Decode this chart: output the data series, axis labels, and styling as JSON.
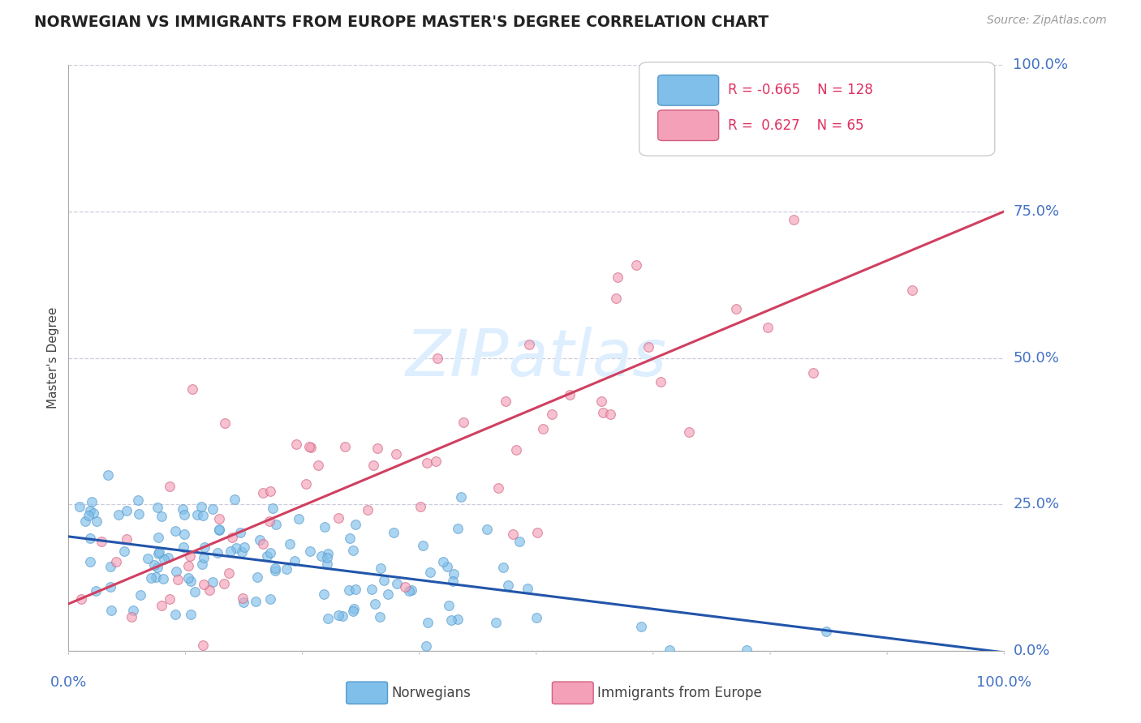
{
  "title": "NORWEGIAN VS IMMIGRANTS FROM EUROPE MASTER'S DEGREE CORRELATION CHART",
  "source": "Source: ZipAtlas.com",
  "ylabel": "Master's Degree",
  "blue_label": "Norwegians",
  "pink_label": "Immigrants from Europe",
  "blue_R": -0.665,
  "blue_N": 128,
  "pink_R": 0.627,
  "pink_N": 65,
  "blue_color": "#7fbfea",
  "pink_color": "#f4a0b8",
  "blue_edge_color": "#5599cc",
  "pink_edge_color": "#d06080",
  "blue_line_color": "#2255aa",
  "pink_line_color": "#d04060",
  "title_color": "#222222",
  "axis_label_color": "#4472c4",
  "watermark_color": "#ddeeff",
  "background_color": "#ffffff",
  "grid_color": "#ccccdd",
  "ylim": [
    0,
    1.0
  ],
  "xlim": [
    0,
    1.0
  ],
  "ytick_vals": [
    0.0,
    0.25,
    0.5,
    0.75,
    1.0
  ],
  "ytick_labels": [
    "0.0%",
    "25.0%",
    "50.0%",
    "75.0%",
    "100.0%"
  ],
  "xtick_vals": [
    0.0,
    1.0
  ],
  "xtick_labels": [
    "0.0%",
    "100.0%"
  ],
  "blue_intercept": 0.195,
  "blue_slope": -0.198,
  "pink_intercept": 0.08,
  "pink_slope": 0.67,
  "marker_size": 16,
  "legend_R_color": "#e03060"
}
